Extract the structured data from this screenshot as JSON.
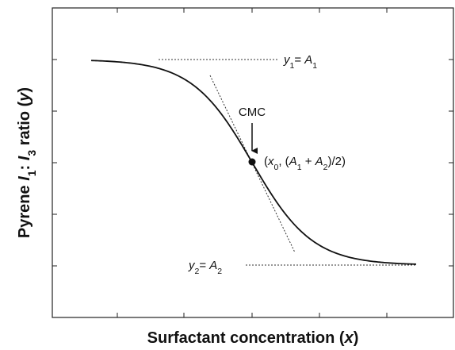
{
  "axis_labels": {
    "y": [
      "Pyrene ",
      "I",
      "1",
      ": ",
      "I",
      "3",
      " ratio (",
      "y",
      ")"
    ],
    "x": [
      "Surfactant concentration (",
      "x",
      ")"
    ]
  },
  "annotations": {
    "upper": [
      "y",
      "1",
      "= ",
      "A",
      "1"
    ],
    "lower": [
      "y",
      "2",
      "= ",
      "A",
      "2"
    ],
    "cmc": "CMC",
    "midpoint": [
      "(",
      "x",
      "0",
      ", (",
      "A",
      "1",
      " + ",
      "A",
      "2",
      ")/2)"
    ]
  }
}
